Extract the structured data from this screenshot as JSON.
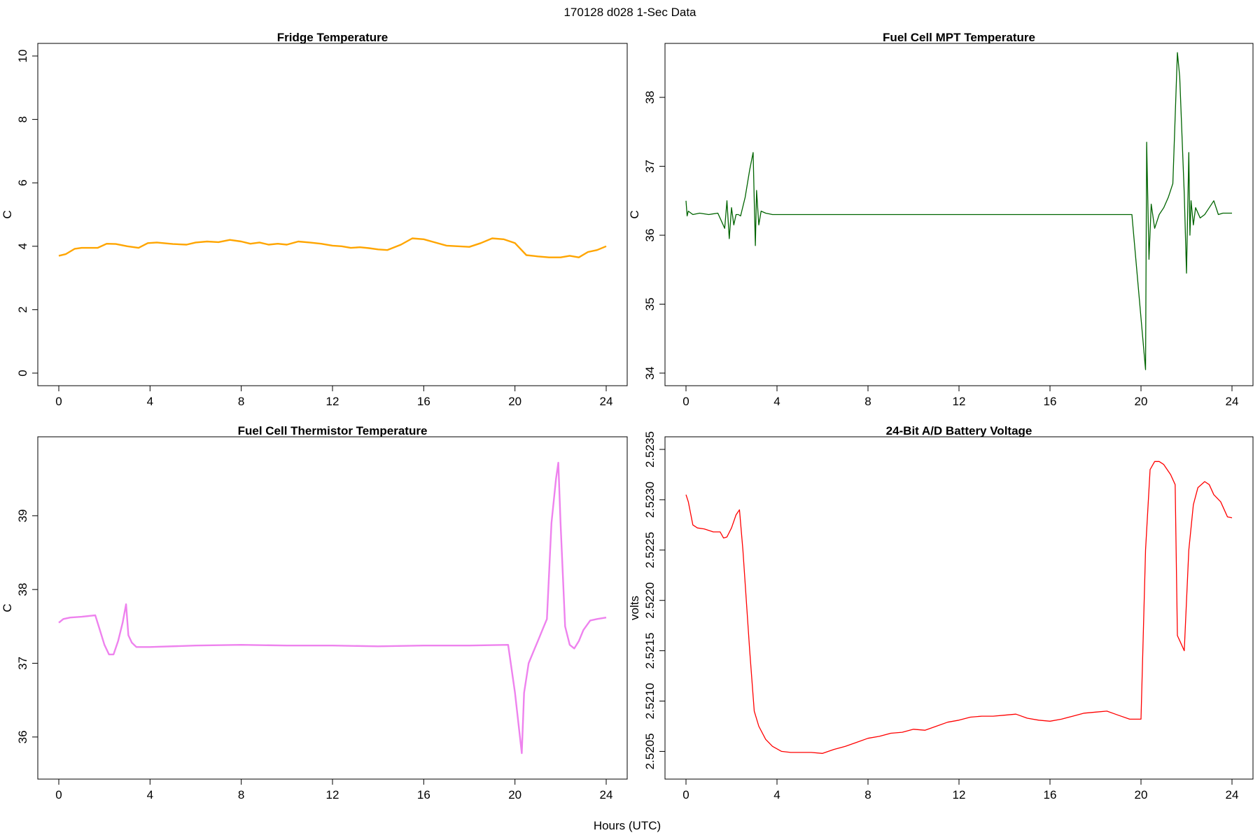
{
  "figure": {
    "suptitle": "170128   d028   1-Sec Data",
    "xlabel": "Hours (UTC)"
  },
  "colors": {
    "fridge": "#FFA500",
    "mpt": "#006400",
    "thermistor": "#EE82EE",
    "battery": "#FF0000"
  },
  "chart_data": [
    {
      "type": "line",
      "title": "Fridge Temperature",
      "ylabel": "C",
      "xlim": [
        0,
        24
      ],
      "ylim": [
        0,
        10
      ],
      "xticks": [
        0,
        4,
        8,
        12,
        16,
        20,
        24
      ],
      "yticks": [
        0,
        2,
        4,
        6,
        8,
        10
      ],
      "ytick_labels": [
        "0",
        "2",
        "4",
        "6",
        "8",
        "10"
      ],
      "series": [
        {
          "color": "#FFA500",
          "x": [
            0,
            0.3,
            0.7,
            1.0,
            1.7,
            2.1,
            2.5,
            3.0,
            3.5,
            3.9,
            4.3,
            5.0,
            5.6,
            6.0,
            6.5,
            7.0,
            7.5,
            8.0,
            8.4,
            8.8,
            9.2,
            9.6,
            10.0,
            10.5,
            11.0,
            11.5,
            12.0,
            12.4,
            12.8,
            13.2,
            13.6,
            14.0,
            14.4,
            15.0,
            15.5,
            16.0,
            16.5,
            17.0,
            17.5,
            18.0,
            18.5,
            19.0,
            19.5,
            20.0,
            20.5,
            21.0,
            21.5,
            22.0,
            22.4,
            22.8,
            23.2,
            23.6,
            24.0
          ],
          "y": [
            3.7,
            3.75,
            3.92,
            3.95,
            3.95,
            4.08,
            4.07,
            4.0,
            3.95,
            4.1,
            4.12,
            4.07,
            4.05,
            4.12,
            4.15,
            4.13,
            4.2,
            4.15,
            4.08,
            4.12,
            4.05,
            4.08,
            4.05,
            4.15,
            4.12,
            4.08,
            4.02,
            4.0,
            3.95,
            3.97,
            3.94,
            3.9,
            3.88,
            4.05,
            4.25,
            4.22,
            4.12,
            4.02,
            4.0,
            3.98,
            4.1,
            4.25,
            4.22,
            4.1,
            3.72,
            3.68,
            3.65,
            3.65,
            3.7,
            3.65,
            3.82,
            3.88,
            4.0
          ]
        }
      ]
    },
    {
      "type": "line",
      "title": "Fuel Cell MPT Temperature",
      "ylabel": "C",
      "xlim": [
        0,
        24
      ],
      "ylim": [
        34,
        38.6
      ],
      "xticks": [
        0,
        4,
        8,
        12,
        16,
        20,
        24
      ],
      "yticks": [
        34,
        35,
        36,
        37,
        38
      ],
      "ytick_labels": [
        "34",
        "35",
        "36",
        "37",
        "38"
      ],
      "series": [
        {
          "color": "#006400",
          "x": [
            0,
            0.05,
            0.1,
            0.3,
            0.6,
            1.0,
            1.4,
            1.7,
            1.8,
            1.9,
            2.0,
            2.1,
            2.2,
            2.3,
            2.4,
            2.6,
            2.8,
            2.95,
            3.0,
            3.05,
            3.1,
            3.2,
            3.3,
            3.5,
            3.8,
            4.5,
            6,
            8,
            10,
            12,
            14,
            16,
            18,
            19.5,
            19.6,
            20.2,
            20.25,
            20.35,
            20.45,
            20.6,
            20.8,
            21.0,
            21.2,
            21.4,
            21.6,
            21.7,
            21.9,
            22.0,
            22.1,
            22.15,
            22.2,
            22.3,
            22.4,
            22.6,
            22.8,
            23.0,
            23.2,
            23.4,
            23.6,
            24.0
          ],
          "y": [
            36.5,
            36.28,
            36.35,
            36.3,
            36.32,
            36.3,
            36.32,
            36.1,
            36.5,
            35.95,
            36.4,
            36.15,
            36.3,
            36.3,
            36.28,
            36.55,
            36.95,
            37.2,
            36.5,
            35.85,
            36.65,
            36.15,
            36.35,
            36.32,
            36.3,
            36.3,
            36.3,
            36.3,
            36.3,
            36.3,
            36.3,
            36.3,
            36.3,
            36.3,
            36.3,
            34.05,
            37.35,
            35.65,
            36.45,
            36.1,
            36.3,
            36.4,
            36.55,
            36.75,
            38.65,
            38.3,
            36.6,
            35.45,
            37.2,
            36.0,
            36.5,
            36.15,
            36.4,
            36.25,
            36.3,
            36.4,
            36.5,
            36.3,
            36.32,
            36.32
          ]
        }
      ]
    },
    {
      "type": "line",
      "title": "Fuel Cell Thermistor Temperature",
      "ylabel": "C",
      "xlim": [
        0,
        24
      ],
      "ylim": [
        35.6,
        39.9
      ],
      "xticks": [
        0,
        4,
        8,
        12,
        16,
        20,
        24
      ],
      "yticks": [
        36,
        37,
        38,
        39
      ],
      "ytick_labels": [
        "36",
        "37",
        "38",
        "39"
      ],
      "series": [
        {
          "color": "#EE82EE",
          "x": [
            0,
            0.2,
            0.5,
            1.0,
            1.6,
            1.8,
            2.0,
            2.2,
            2.4,
            2.6,
            2.8,
            2.95,
            3.05,
            3.2,
            3.4,
            3.6,
            4.0,
            6,
            8,
            10,
            12,
            14,
            16,
            18,
            19.7,
            20.0,
            20.2,
            20.3,
            20.4,
            20.6,
            20.8,
            21.0,
            21.2,
            21.4,
            21.6,
            21.8,
            21.9,
            22.0,
            22.2,
            22.4,
            22.6,
            22.8,
            23.0,
            23.3,
            23.6,
            24.0
          ],
          "y": [
            37.55,
            37.6,
            37.62,
            37.63,
            37.65,
            37.45,
            37.25,
            37.12,
            37.12,
            37.3,
            37.55,
            37.8,
            37.38,
            37.28,
            37.22,
            37.22,
            37.22,
            37.24,
            37.25,
            37.24,
            37.24,
            37.23,
            37.24,
            37.24,
            37.25,
            36.6,
            36.05,
            35.78,
            36.6,
            37.0,
            37.15,
            37.3,
            37.45,
            37.6,
            38.9,
            39.5,
            39.72,
            38.9,
            37.5,
            37.25,
            37.2,
            37.3,
            37.45,
            37.58,
            37.6,
            37.62
          ]
        }
      ]
    },
    {
      "type": "line",
      "title": "24-Bit A/D Battery Voltage",
      "ylabel": "volts",
      "xlim": [
        0,
        24
      ],
      "ylim": [
        2.52035,
        2.5235
      ],
      "xticks": [
        0,
        4,
        8,
        12,
        16,
        20,
        24
      ],
      "yticks": [
        2.5205,
        2.521,
        2.5215,
        2.522,
        2.5225,
        2.523,
        2.5235
      ],
      "ytick_labels": [
        "2.5205",
        "2.5210",
        "2.5215",
        "2.5220",
        "2.5225",
        "2.5230",
        "2.5235"
      ],
      "series": [
        {
          "color": "#FF0000",
          "x": [
            0,
            0.1,
            0.3,
            0.5,
            0.8,
            1.2,
            1.5,
            1.65,
            1.8,
            2.0,
            2.2,
            2.35,
            2.5,
            2.8,
            3.0,
            3.2,
            3.5,
            3.8,
            4.2,
            4.6,
            5.0,
            5.5,
            6.0,
            6.5,
            7.0,
            7.5,
            8.0,
            8.5,
            9.0,
            9.5,
            10.0,
            10.5,
            11.0,
            11.5,
            12.0,
            12.5,
            13.0,
            13.5,
            14.0,
            14.5,
            15.0,
            15.5,
            16.0,
            16.5,
            17.0,
            17.5,
            18.0,
            18.5,
            19.0,
            19.5,
            19.7,
            20.0,
            20.2,
            20.4,
            20.6,
            20.8,
            21.0,
            21.3,
            21.5,
            21.6,
            21.7,
            21.9,
            22.1,
            22.3,
            22.5,
            22.8,
            23.0,
            23.2,
            23.5,
            23.7,
            23.8,
            24.0
          ],
          "y": [
            2.52305,
            2.52298,
            2.52275,
            2.52272,
            2.52271,
            2.52268,
            2.52268,
            2.52262,
            2.52263,
            2.52272,
            2.52285,
            2.5229,
            2.5225,
            2.5215,
            2.5209,
            2.52075,
            2.52062,
            2.52055,
            2.5205,
            2.52049,
            2.52049,
            2.52049,
            2.52048,
            2.52052,
            2.52055,
            2.52059,
            2.52063,
            2.52065,
            2.52068,
            2.52069,
            2.52072,
            2.52071,
            2.52075,
            2.52079,
            2.52081,
            2.52084,
            2.52085,
            2.52085,
            2.52086,
            2.52087,
            2.52083,
            2.52081,
            2.5208,
            2.52082,
            2.52085,
            2.52088,
            2.52089,
            2.5209,
            2.52086,
            2.52082,
            2.52082,
            2.52082,
            2.5225,
            2.5233,
            2.52338,
            2.52338,
            2.52335,
            2.52325,
            2.52315,
            2.52165,
            2.5216,
            2.5215,
            2.5225,
            2.52295,
            2.52312,
            2.52318,
            2.52315,
            2.52305,
            2.52298,
            2.52288,
            2.52283,
            2.52282
          ]
        }
      ]
    }
  ]
}
